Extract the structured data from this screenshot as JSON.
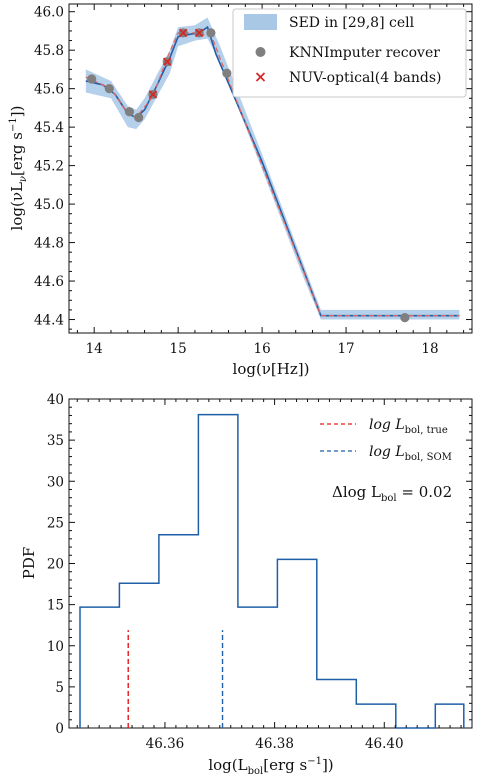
{
  "chart_data": [
    {
      "type": "line",
      "xlabel": "log(νL_ν[erg s⁻¹]) vs log(ν[Hz])",
      "xlabel_text": "log(ν[Hz])",
      "ylabel_text": "log(νL",
      "ylabel_sub": "ν",
      "ylabel_tail": "[erg s",
      "ylabel_sup": "−1",
      "ylabel_end": "])",
      "xlim": [
        13.7,
        18.5
      ],
      "ylim": [
        44.33,
        46.04
      ],
      "x_ticks": [
        14,
        15,
        16,
        17,
        18
      ],
      "x_tick_labels": [
        "14",
        "15",
        "16",
        "17",
        "18"
      ],
      "y_ticks": [
        44.4,
        44.6,
        44.8,
        45.0,
        45.2,
        45.4,
        45.6,
        45.8,
        46.0
      ],
      "y_tick_labels": [
        "44.4",
        "44.6",
        "44.8",
        "45.0",
        "45.2",
        "45.4",
        "45.6",
        "45.8",
        "46.0"
      ],
      "legend": {
        "placement": "top-right",
        "entries": [
          {
            "label": "SED in [29,8] cell",
            "kind": "band",
            "color": "#a8c8e6"
          },
          {
            "label": "KNNImputer recover",
            "kind": "marker-circle",
            "color": "#7f7f7f"
          },
          {
            "label": "NUV-optical(4 bands)",
            "kind": "marker-x",
            "color": "#d62728"
          }
        ]
      },
      "series": [
        {
          "kind": "band",
          "color": "#a8c8e6",
          "x": [
            13.9,
            14.2,
            14.4,
            14.5,
            14.6,
            14.9,
            15.0,
            15.2,
            15.35,
            15.5,
            16.0,
            16.5,
            16.7,
            18.35
          ],
          "y_low": [
            45.58,
            45.55,
            45.4,
            45.39,
            45.44,
            45.68,
            45.82,
            45.85,
            45.86,
            45.74,
            45.18,
            44.61,
            44.4,
            44.4
          ],
          "y_high": [
            45.7,
            45.64,
            45.51,
            45.49,
            45.55,
            45.8,
            45.92,
            45.93,
            45.97,
            45.82,
            45.26,
            44.68,
            44.45,
            44.45
          ]
        },
        {
          "kind": "solid-line",
          "color": "#1f5fa8",
          "x": [
            13.9,
            14.1,
            14.25,
            14.4,
            14.5,
            14.6,
            14.75,
            14.9,
            15.0,
            15.1,
            15.25,
            15.35,
            15.45,
            16.0,
            16.7,
            18.35
          ],
          "y": [
            45.64,
            45.62,
            45.57,
            45.47,
            45.45,
            45.49,
            45.62,
            45.76,
            45.87,
            45.88,
            45.89,
            45.92,
            45.78,
            45.22,
            44.42,
            44.42
          ]
        },
        {
          "kind": "dashed-line",
          "color": "#e06666",
          "x": [
            13.9,
            14.2,
            14.4,
            14.5,
            14.7,
            14.85,
            15.0,
            15.2,
            15.4,
            15.55,
            16.0,
            16.7,
            18.35
          ],
          "y": [
            45.66,
            45.6,
            45.47,
            45.45,
            45.56,
            45.74,
            45.89,
            45.89,
            45.87,
            45.7,
            45.2,
            44.42,
            44.42
          ]
        },
        {
          "kind": "grey-points",
          "name": "KNNImputer recover",
          "color": "#7f7f7f",
          "x": [
            13.97,
            14.18,
            14.42,
            14.53,
            14.7,
            14.87,
            15.06,
            15.25,
            15.39,
            15.58,
            17.7
          ],
          "y": [
            45.65,
            45.6,
            45.48,
            45.45,
            45.57,
            45.74,
            45.89,
            45.89,
            45.89,
            45.68,
            44.41
          ]
        },
        {
          "kind": "red-crosses",
          "name": "NUV-optical(4 bands)",
          "color": "#d62728",
          "x": [
            14.7,
            14.87,
            15.06,
            15.25
          ],
          "y": [
            45.57,
            45.74,
            45.89,
            45.89
          ]
        }
      ]
    },
    {
      "type": "bar",
      "histtype": "step",
      "xlabel_text": "log(L",
      "xlabel_sub": "bol",
      "xlabel_tail": "[erg s",
      "xlabel_sup": "−1",
      "xlabel_end": "])",
      "ylabel_text": "PDF",
      "xlim": [
        46.3425,
        46.416
      ],
      "ylim": [
        0,
        40
      ],
      "x_ticks": [
        46.36,
        46.38,
        46.4
      ],
      "x_tick_labels": [
        "46.36",
        "46.38",
        "46.40"
      ],
      "y_ticks": [
        0,
        5,
        10,
        15,
        20,
        25,
        30,
        35,
        40
      ],
      "y_tick_labels": [
        "0",
        "5",
        "10",
        "15",
        "20",
        "25",
        "30",
        "35",
        "40"
      ],
      "bin_edges": [
        46.3445,
        46.3517,
        46.3589,
        46.3661,
        46.3733,
        46.3805,
        46.3877,
        46.3949,
        46.4021,
        46.4093,
        46.4145
      ],
      "values": [
        14.7,
        17.6,
        23.5,
        38.1,
        14.7,
        20.5,
        5.9,
        2.9,
        0.0,
        2.9
      ],
      "step_color": "#1f5fa8",
      "vlines": [
        {
          "name": "true",
          "x": 46.3533,
          "height": 11.9,
          "color": "#e31a1c"
        },
        {
          "name": "som",
          "x": 46.3705,
          "height": 11.9,
          "color": "#1f5fa8"
        }
      ],
      "legend": {
        "placement": "top-right",
        "entries": [
          {
            "label_main": "log L",
            "label_sub": "bol, true",
            "color": "#e31a1c"
          },
          {
            "label_main": "log L",
            "label_sub": "bol, SOM",
            "color": "#1f5fa8"
          }
        ]
      },
      "annotation": {
        "prefix": "Δlog L",
        "sub": "bol",
        "suffix": " = 0.02"
      }
    }
  ]
}
